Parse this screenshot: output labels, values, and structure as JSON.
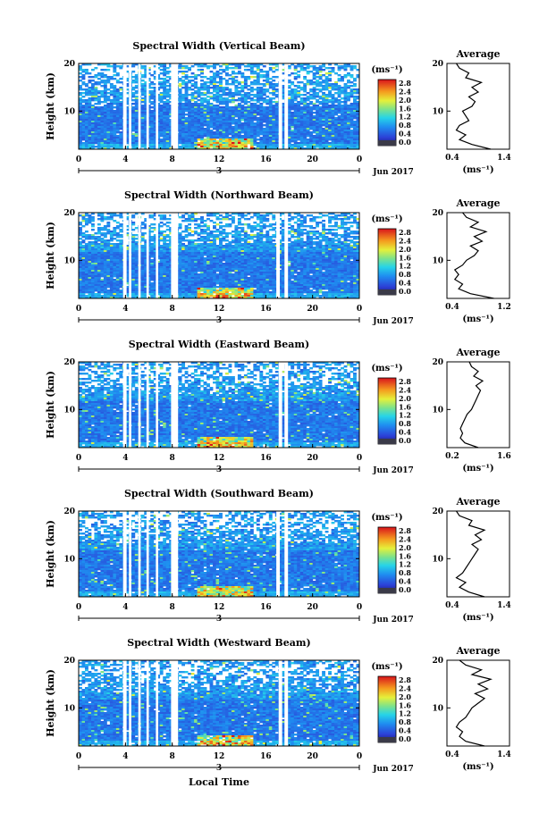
{
  "figure": {
    "xlabel": "Local Time",
    "date_label": "Jun 2017",
    "day_label": "3",
    "colorbar_unit": "(ms⁻¹)",
    "colorbar_ticks": [
      "0.0",
      "0.4",
      "0.8",
      "1.2",
      "1.6",
      "2.0",
      "2.4",
      "2.8"
    ],
    "panel_ylabel": "Height (km)",
    "avg_title": "Average",
    "avg_xlabel": "(ms⁻¹)"
  },
  "chart_data": [
    {
      "type": "heatmap",
      "title": "Spectral Width (Vertical Beam)",
      "xlim": [
        0,
        24
      ],
      "xticks": [
        "0",
        "4",
        "8",
        "12",
        "16",
        "20",
        "0"
      ],
      "ylim": [
        2,
        20
      ],
      "yticks": [
        "20",
        "10"
      ],
      "clim": [
        0.0,
        3.0
      ],
      "gaps_hours": [
        [
          3.8,
          4.1
        ],
        [
          4.3,
          4.5
        ],
        [
          5.1,
          5.3
        ],
        [
          5.8,
          6.0
        ],
        [
          6.6,
          6.8
        ],
        [
          7.9,
          8.5
        ],
        [
          17.1,
          17.4
        ],
        [
          17.6,
          17.9
        ]
      ],
      "average_profile": {
        "xlim": [
          0.4,
          1.4
        ],
        "xticks": [
          "0.4",
          "1.4"
        ],
        "height_km": [
          2,
          3,
          4,
          5,
          6,
          7,
          8,
          9,
          10,
          11,
          12,
          13,
          14,
          15,
          16,
          17,
          18,
          19,
          20
        ],
        "width": [
          1.1,
          0.8,
          0.6,
          0.7,
          0.55,
          0.6,
          0.75,
          0.7,
          0.65,
          0.8,
          0.85,
          0.75,
          0.9,
          0.8,
          0.95,
          0.7,
          0.75,
          0.6,
          0.55
        ]
      }
    },
    {
      "type": "heatmap",
      "title": "Spectral Width (Northward Beam)",
      "xlim": [
        0,
        24
      ],
      "xticks": [
        "0",
        "4",
        "8",
        "12",
        "16",
        "20",
        "0"
      ],
      "ylim": [
        2,
        20
      ],
      "yticks": [
        "20",
        "10"
      ],
      "clim": [
        0.0,
        3.0
      ],
      "gaps_hours": [
        [
          3.8,
          4.1
        ],
        [
          4.3,
          4.5
        ],
        [
          5.1,
          5.3
        ],
        [
          5.8,
          6.0
        ],
        [
          6.6,
          6.8
        ],
        [
          7.9,
          8.5
        ],
        [
          16.9,
          17.2
        ],
        [
          17.6,
          17.9
        ]
      ],
      "average_profile": {
        "xlim": [
          0.4,
          1.2
        ],
        "xticks": [
          "0.4",
          "1.2"
        ],
        "height_km": [
          2,
          3,
          4,
          5,
          6,
          7,
          8,
          9,
          10,
          11,
          12,
          13,
          14,
          15,
          16,
          17,
          18,
          19,
          20
        ],
        "width": [
          1.0,
          0.7,
          0.55,
          0.6,
          0.5,
          0.55,
          0.5,
          0.6,
          0.65,
          0.75,
          0.8,
          0.7,
          0.85,
          0.75,
          0.9,
          0.7,
          0.8,
          0.65,
          0.6
        ]
      }
    },
    {
      "type": "heatmap",
      "title": "Spectral Width (Eastward Beam)",
      "xlim": [
        0,
        24
      ],
      "xticks": [
        "0",
        "4",
        "8",
        "12",
        "16",
        "20",
        "0"
      ],
      "ylim": [
        2,
        20
      ],
      "yticks": [
        "20",
        "10"
      ],
      "clim": [
        0.0,
        3.0
      ],
      "gaps_hours": [
        [
          3.8,
          4.1
        ],
        [
          4.3,
          4.5
        ],
        [
          5.1,
          5.3
        ],
        [
          5.8,
          6.0
        ],
        [
          6.6,
          6.8
        ],
        [
          7.9,
          8.5
        ],
        [
          17.1,
          17.4
        ],
        [
          17.6,
          17.9
        ]
      ],
      "average_profile": {
        "xlim": [
          0.2,
          1.6
        ],
        "xticks": [
          "0.2",
          "1.6"
        ],
        "height_km": [
          2,
          3,
          4,
          5,
          6,
          7,
          8,
          9,
          10,
          11,
          12,
          13,
          14,
          15,
          16,
          17,
          18,
          19,
          20
        ],
        "width": [
          0.9,
          0.6,
          0.5,
          0.55,
          0.5,
          0.55,
          0.6,
          0.65,
          0.75,
          0.8,
          0.85,
          0.9,
          0.95,
          0.85,
          1.0,
          0.8,
          0.9,
          0.75,
          0.7
        ]
      }
    },
    {
      "type": "heatmap",
      "title": "Spectral Width (Southward Beam)",
      "xlim": [
        0,
        24
      ],
      "xticks": [
        "0",
        "4",
        "8",
        "12",
        "16",
        "20",
        "0"
      ],
      "ylim": [
        2,
        20
      ],
      "yticks": [
        "20",
        "10"
      ],
      "clim": [
        0.0,
        3.0
      ],
      "gaps_hours": [
        [
          3.8,
          4.1
        ],
        [
          4.3,
          4.5
        ],
        [
          5.1,
          5.3
        ],
        [
          5.8,
          6.0
        ],
        [
          6.6,
          6.8
        ],
        [
          7.9,
          8.5
        ],
        [
          16.9,
          17.2
        ],
        [
          17.6,
          17.9
        ]
      ],
      "average_profile": {
        "xlim": [
          0.4,
          1.4
        ],
        "xticks": [
          "0.4",
          "1.4"
        ],
        "height_km": [
          2,
          3,
          4,
          5,
          6,
          7,
          8,
          9,
          10,
          11,
          12,
          13,
          14,
          15,
          16,
          17,
          18,
          19,
          20
        ],
        "width": [
          1.0,
          0.75,
          0.6,
          0.7,
          0.55,
          0.65,
          0.7,
          0.75,
          0.8,
          0.85,
          0.9,
          0.8,
          0.95,
          0.85,
          1.0,
          0.75,
          0.8,
          0.6,
          0.55
        ]
      }
    },
    {
      "type": "heatmap",
      "title": "Spectral Width (Westward Beam)",
      "xlim": [
        0,
        24
      ],
      "xticks": [
        "0",
        "4",
        "8",
        "12",
        "16",
        "20",
        "0"
      ],
      "ylim": [
        2,
        20
      ],
      "yticks": [
        "20",
        "10"
      ],
      "clim": [
        0.0,
        3.0
      ],
      "gaps_hours": [
        [
          3.8,
          4.1
        ],
        [
          4.3,
          4.5
        ],
        [
          5.1,
          5.3
        ],
        [
          5.8,
          6.0
        ],
        [
          6.6,
          6.8
        ],
        [
          7.9,
          8.5
        ],
        [
          17.1,
          17.4
        ],
        [
          17.6,
          17.9
        ]
      ],
      "average_profile": {
        "xlim": [
          0.4,
          1.4
        ],
        "xticks": [
          "0.4",
          "1.4"
        ],
        "height_km": [
          2,
          3,
          4,
          5,
          6,
          7,
          8,
          9,
          10,
          11,
          12,
          13,
          14,
          15,
          16,
          17,
          18,
          19,
          20
        ],
        "width": [
          1.0,
          0.7,
          0.6,
          0.65,
          0.55,
          0.6,
          0.7,
          0.75,
          0.8,
          0.9,
          1.0,
          0.85,
          1.05,
          0.9,
          1.1,
          0.8,
          0.95,
          0.7,
          0.6
        ]
      }
    }
  ]
}
